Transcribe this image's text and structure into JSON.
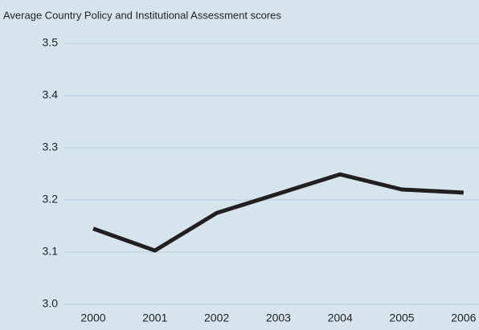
{
  "chart_data": {
    "type": "line",
    "title": "Average Country Policy and Institutional Assessment scores",
    "categories": [
      "2000",
      "2001",
      "2002",
      "2003",
      "2004",
      "2005",
      "2006"
    ],
    "series": [
      {
        "name": null,
        "color": "#231f20",
        "values": [
          3.145,
          3.103,
          3.175,
          3.212,
          3.249,
          3.22,
          3.214
        ]
      }
    ],
    "ylim": [
      3.0,
      3.5
    ],
    "yticks": [
      {
        "value": 3.0,
        "label": "3.0"
      },
      3.1,
      3.2,
      3.3,
      3.4,
      3.5
    ],
    "grid": true
  }
}
